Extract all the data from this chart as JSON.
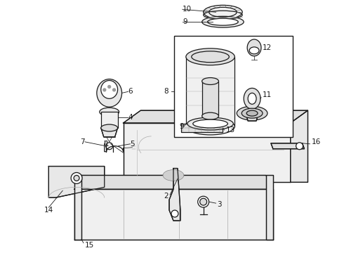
{
  "background_color": "#ffffff",
  "line_color": "#1a1a1a",
  "fig_width": 4.9,
  "fig_height": 3.6,
  "dpi": 100,
  "label_fontsize": 7.5,
  "lw_main": 0.9,
  "lw_thin": 0.5,
  "lw_thick": 1.3
}
